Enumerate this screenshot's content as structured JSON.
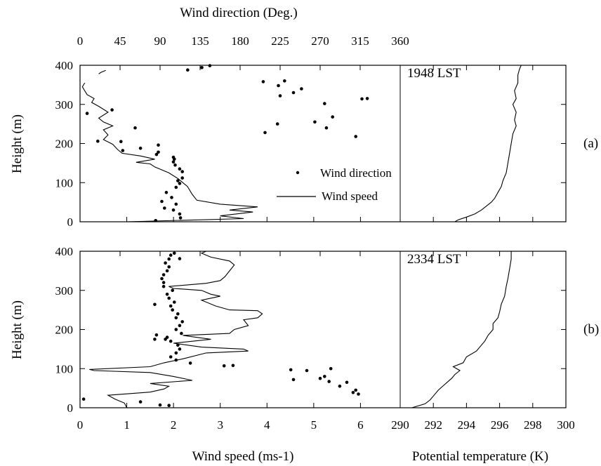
{
  "chart_data": [
    {
      "type": "line",
      "panel": "(a)",
      "time_label": "1948 LST",
      "top_axis": {
        "label": "Wind direction (Deg.)",
        "ticks": [
          "0",
          "45",
          "90",
          "135",
          "180",
          "225",
          "270",
          "315",
          "360"
        ],
        "range": [
          0,
          360
        ]
      },
      "left_axis": {
        "label": "Height (m)",
        "ticks": [
          "0",
          "100",
          "200",
          "300",
          "400"
        ],
        "range": [
          0,
          400
        ]
      },
      "wind_speed_axis_range": [
        0,
        6.85
      ],
      "theta_axis_range": [
        290,
        300
      ],
      "legend": {
        "dots": "Wind direction",
        "line": "Wind speed"
      },
      "series": [
        {
          "name": "Wind speed",
          "marker": "line",
          "points": [
            [
              1.0,
              0
            ],
            [
              3.5,
              8
            ],
            [
              3.0,
              15
            ],
            [
              3.7,
              25
            ],
            [
              3.2,
              30
            ],
            [
              3.8,
              38
            ],
            [
              3.0,
              45
            ],
            [
              2.5,
              55
            ],
            [
              2.4,
              70
            ],
            [
              2.3,
              90
            ],
            [
              2.1,
              110
            ],
            [
              1.9,
              125
            ],
            [
              1.6,
              140
            ],
            [
              1.5,
              148
            ],
            [
              1.2,
              152
            ],
            [
              1.6,
              160
            ],
            [
              1.3,
              168
            ],
            [
              0.9,
              175
            ],
            [
              0.8,
              185
            ],
            [
              0.7,
              198
            ],
            [
              0.5,
              210
            ],
            [
              0.6,
              222
            ],
            [
              0.5,
              235
            ],
            [
              0.7,
              245
            ],
            [
              0.5,
              255
            ],
            [
              0.4,
              265
            ],
            [
              0.6,
              280
            ],
            [
              0.4,
              295
            ],
            [
              0.25,
              305
            ],
            [
              0.3,
              315
            ],
            [
              0.15,
              325
            ],
            [
              0.05,
              345
            ],
            [
              0.1,
              355
            ]
          ]
        },
        {
          "name": "Wind speed",
          "marker": "line",
          "points": [
            [
              0.4,
              378
            ],
            [
              0.45,
              382
            ],
            [
              0.55,
              387
            ]
          ]
        },
        {
          "name": "Wind direction",
          "marker": "dots",
          "points": [
            [
              85,
              3
            ],
            [
              113,
              10
            ],
            [
              112,
              20
            ],
            [
              105,
              30
            ],
            [
              95,
              35
            ],
            [
              108,
              45
            ],
            [
              92,
              52
            ],
            [
              103,
              62
            ],
            [
              97,
              75
            ],
            [
              108,
              88
            ],
            [
              112,
              98
            ],
            [
              110,
              105
            ],
            [
              115,
              112
            ],
            [
              115,
              128
            ],
            [
              112,
              135
            ],
            [
              107,
              145
            ],
            [
              105,
              153
            ],
            [
              106,
              160
            ],
            [
              105,
              165
            ],
            [
              86,
              172
            ],
            [
              88,
              178
            ],
            [
              68,
              188
            ],
            [
              88,
              196
            ],
            [
              48,
              182
            ],
            [
              46,
              205
            ],
            [
              20,
              206
            ],
            [
              62,
              240
            ],
            [
              8,
              277
            ],
            [
              36,
              286
            ],
            [
              146,
              399
            ],
            [
              137,
              394
            ],
            [
              121,
              388
            ],
            [
              206,
              358
            ],
            [
              230,
              360
            ],
            [
              223,
              348
            ],
            [
              249,
              340
            ],
            [
              240,
              330
            ],
            [
              225,
              322
            ],
            [
              323,
              315
            ],
            [
              317,
              314
            ],
            [
              275,
              302
            ],
            [
              284,
              268
            ],
            [
              264,
              255
            ],
            [
              222,
              250
            ],
            [
              277,
              240
            ],
            [
              208,
              228
            ],
            [
              310,
              218
            ]
          ]
        },
        {
          "name": "Potential temperature",
          "marker": "line",
          "points": [
            [
              293.3,
              0
            ],
            [
              293.5,
              5
            ],
            [
              294.0,
              12
            ],
            [
              294.5,
              20
            ],
            [
              294.9,
              30
            ],
            [
              295.2,
              40
            ],
            [
              295.5,
              50
            ],
            [
              295.7,
              60
            ],
            [
              295.9,
              75
            ],
            [
              296.1,
              90
            ],
            [
              296.2,
              105
            ],
            [
              296.4,
              125
            ],
            [
              296.5,
              150
            ],
            [
              296.6,
              175
            ],
            [
              296.7,
              200
            ],
            [
              296.8,
              225
            ],
            [
              297.0,
              245
            ],
            [
              296.9,
              260
            ],
            [
              297.0,
              280
            ],
            [
              296.8,
              300
            ],
            [
              297.0,
              315
            ],
            [
              296.9,
              335
            ],
            [
              297.1,
              355
            ],
            [
              297.1,
              375
            ],
            [
              297.2,
              390
            ],
            [
              297.3,
              400
            ]
          ]
        }
      ]
    },
    {
      "type": "line",
      "panel": "(b)",
      "time_label": "2334 LST",
      "left_axis": {
        "label": "Height (m)",
        "ticks": [
          "0",
          "100",
          "200",
          "300",
          "400"
        ],
        "range": [
          0,
          400
        ]
      },
      "bottom_axis_left": {
        "label": "Wind speed (ms-1)",
        "ticks": [
          "0",
          "1",
          "2",
          "3",
          "4",
          "5",
          "6"
        ],
        "range": [
          0,
          6.85
        ]
      },
      "bottom_axis_right": {
        "label": "Potential temperature (K)",
        "ticks": [
          "290",
          "292",
          "294",
          "296",
          "298",
          "300"
        ],
        "range": [
          290,
          300
        ]
      },
      "wind_direction_axis_range": [
        0,
        360
      ],
      "series": [
        {
          "name": "Wind speed",
          "marker": "line",
          "points": [
            [
              1.0,
              0
            ],
            [
              0.95,
              12
            ],
            [
              0.75,
              22
            ],
            [
              0.6,
              32
            ],
            [
              1.5,
              40
            ],
            [
              1.8,
              48
            ],
            [
              1.9,
              55
            ],
            [
              1.5,
              62
            ],
            [
              2.4,
              70
            ],
            [
              2.0,
              80
            ],
            [
              1.5,
              90
            ],
            [
              0.3,
              95
            ],
            [
              0.2,
              98
            ],
            [
              1.5,
              105
            ],
            [
              1.8,
              115
            ],
            [
              2.2,
              125
            ],
            [
              2.7,
              140
            ],
            [
              3.6,
              145
            ],
            [
              3.5,
              150
            ],
            [
              2.6,
              155
            ],
            [
              2.0,
              165
            ],
            [
              2.8,
              175
            ],
            [
              2.2,
              185
            ],
            [
              3.2,
              190
            ],
            [
              3.3,
              200
            ],
            [
              3.6,
              210
            ],
            [
              3.5,
              225
            ],
            [
              3.8,
              230
            ],
            [
              3.9,
              240
            ],
            [
              3.8,
              248
            ],
            [
              3.2,
              250
            ],
            [
              2.9,
              260
            ],
            [
              2.6,
              275
            ],
            [
              3.0,
              285
            ],
            [
              2.8,
              290
            ],
            [
              2.6,
              300
            ],
            [
              2.0,
              305
            ],
            [
              1.9,
              310
            ],
            [
              2.7,
              318
            ],
            [
              3.0,
              325
            ],
            [
              3.1,
              335
            ],
            [
              3.2,
              350
            ],
            [
              3.3,
              365
            ],
            [
              3.2,
              375
            ],
            [
              2.8,
              385
            ],
            [
              2.6,
              395
            ],
            [
              2.7,
              400
            ]
          ]
        },
        {
          "name": "Wind direction",
          "marker": "dots",
          "points": [
            [
              4,
              22
            ],
            [
              68,
              15
            ],
            [
              90,
              7
            ],
            [
              100,
              6
            ],
            [
              162,
              107
            ],
            [
              124,
              114
            ],
            [
              172,
              108
            ],
            [
              282,
              100
            ],
            [
              255,
              95
            ],
            [
              280,
              67
            ],
            [
              300,
              65
            ],
            [
              292,
              55
            ],
            [
              310,
              45
            ],
            [
              313,
              35
            ],
            [
              307,
              39
            ],
            [
              237,
              97
            ],
            [
              240,
              72
            ],
            [
              275,
              80
            ],
            [
              270,
              75
            ],
            [
              108,
              122
            ],
            [
              102,
              130
            ],
            [
              108,
              140
            ],
            [
              112,
              150
            ],
            [
              110,
              160
            ],
            [
              102,
              170
            ],
            [
              96,
              175
            ],
            [
              98,
              180
            ],
            [
              114,
              190
            ],
            [
              108,
              200
            ],
            [
              112,
              210
            ],
            [
              115,
              220
            ],
            [
              108,
              230
            ],
            [
              110,
              240
            ],
            [
              104,
              250
            ],
            [
              102,
              260
            ],
            [
              106,
              270
            ],
            [
              100,
              280
            ],
            [
              98,
              290
            ],
            [
              104,
              300
            ],
            [
              94,
              310
            ],
            [
              94,
              320
            ],
            [
              92,
              330
            ],
            [
              94,
              340
            ],
            [
              98,
              350
            ],
            [
              100,
              360
            ],
            [
              96,
              370
            ],
            [
              100,
              380
            ],
            [
              102,
              390
            ],
            [
              106,
              395
            ],
            [
              112,
              381
            ],
            [
              84,
              264
            ],
            [
              84,
              175
            ],
            [
              86,
              186
            ]
          ]
        },
        {
          "name": "Potential temperature",
          "marker": "line",
          "points": [
            [
              290.7,
              0
            ],
            [
              291.5,
              10
            ],
            [
              291.8,
              20
            ],
            [
              292.0,
              30
            ],
            [
              292.3,
              45
            ],
            [
              292.7,
              60
            ],
            [
              293.1,
              75
            ],
            [
              293.3,
              85
            ],
            [
              293.6,
              95
            ],
            [
              293.2,
              105
            ],
            [
              293.8,
              115
            ],
            [
              294.0,
              130
            ],
            [
              294.6,
              145
            ],
            [
              294.9,
              160
            ],
            [
              295.1,
              170
            ],
            [
              295.3,
              185
            ],
            [
              295.6,
              200
            ],
            [
              295.6,
              215
            ],
            [
              295.9,
              230
            ],
            [
              296.0,
              245
            ],
            [
              296.1,
              265
            ],
            [
              296.3,
              285
            ],
            [
              296.4,
              310
            ],
            [
              296.5,
              330
            ],
            [
              296.6,
              355
            ],
            [
              296.7,
              380
            ],
            [
              296.7,
              400
            ]
          ]
        }
      ]
    }
  ]
}
